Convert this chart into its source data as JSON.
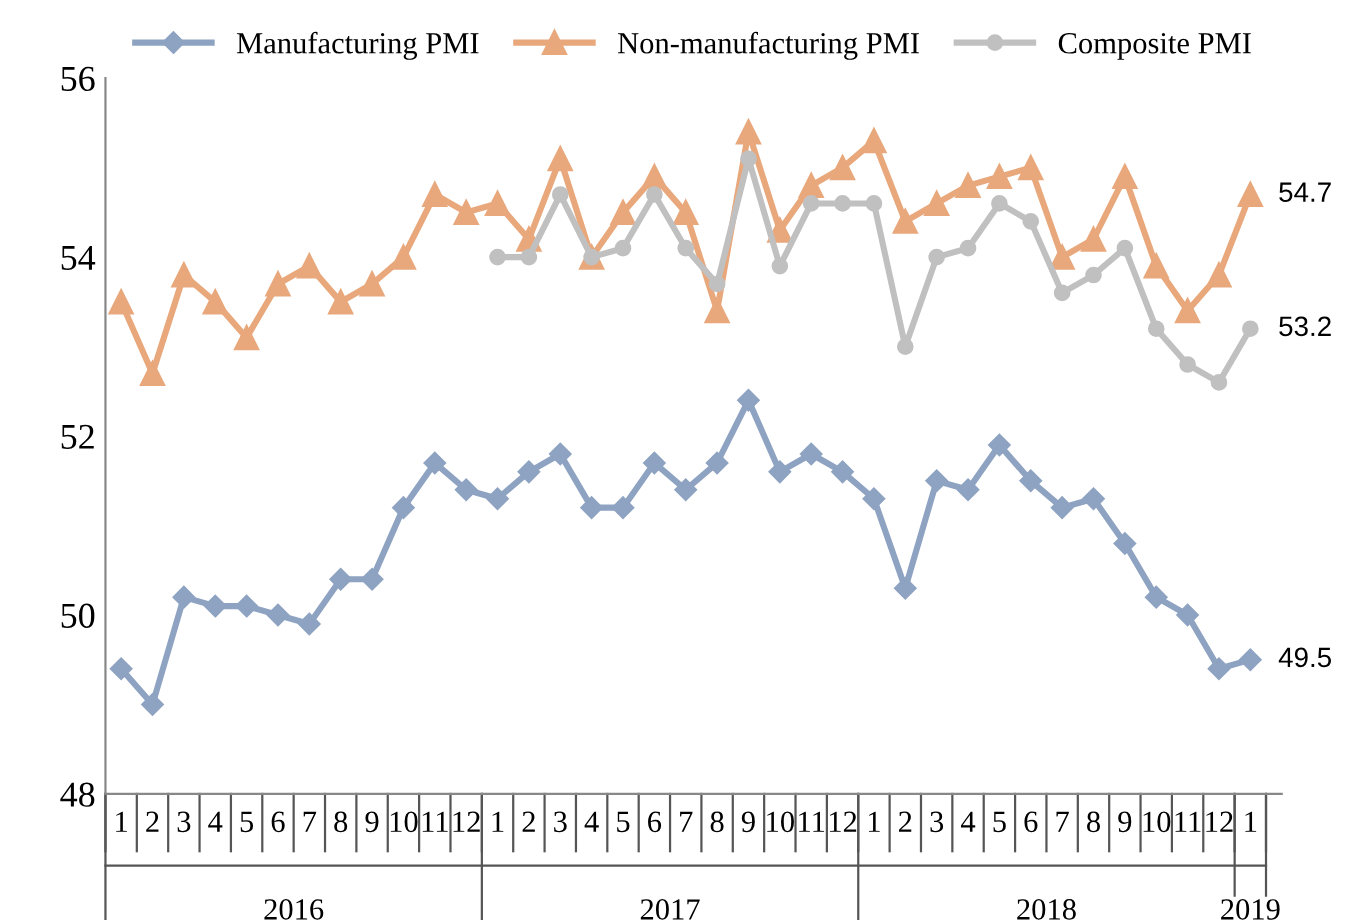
{
  "chart_data": {
    "type": "line",
    "categories": [
      "1",
      "2",
      "3",
      "4",
      "5",
      "6",
      "7",
      "8",
      "9",
      "10",
      "11",
      "12",
      "1",
      "2",
      "3",
      "4",
      "5",
      "6",
      "7",
      "8",
      "9",
      "10",
      "11",
      "12",
      "1",
      "2",
      "3",
      "4",
      "5",
      "6",
      "7",
      "8",
      "9",
      "10",
      "11",
      "12",
      "1"
    ],
    "series": [
      {
        "name": "Manufacturing PMI",
        "color": "#8ea3c2",
        "marker": "diamond",
        "values": [
          49.4,
          49.0,
          50.2,
          50.1,
          50.1,
          50.0,
          49.9,
          50.4,
          50.4,
          51.2,
          51.7,
          51.4,
          51.3,
          51.6,
          51.8,
          51.2,
          51.2,
          51.7,
          51.4,
          51.7,
          52.4,
          51.6,
          51.8,
          51.6,
          51.3,
          50.3,
          51.5,
          51.4,
          51.9,
          51.5,
          51.2,
          51.3,
          50.8,
          50.2,
          50.0,
          49.4,
          49.5
        ],
        "value_labels": [
          null,
          null,
          null,
          null,
          null,
          null,
          null,
          null,
          null,
          null,
          null,
          null,
          null,
          null,
          null,
          null,
          null,
          null,
          null,
          null,
          null,
          null,
          null,
          null,
          null,
          null,
          null,
          null,
          null,
          null,
          null,
          null,
          null,
          null,
          null,
          null,
          "49.5"
        ]
      },
      {
        "name": "Non-manufacturing PMI",
        "color": "#e8a87c",
        "marker": "triangle",
        "values": [
          53.5,
          52.7,
          53.8,
          53.5,
          53.1,
          53.7,
          53.9,
          53.5,
          53.7,
          54.0,
          54.7,
          54.5,
          54.6,
          54.2,
          55.1,
          54.0,
          54.5,
          54.9,
          54.5,
          53.4,
          55.4,
          54.3,
          54.8,
          55.0,
          55.3,
          54.4,
          54.6,
          54.8,
          54.9,
          55.0,
          54.0,
          54.2,
          54.9,
          53.9,
          53.4,
          53.8,
          54.7
        ],
        "value_labels": [
          null,
          null,
          null,
          null,
          null,
          null,
          null,
          null,
          null,
          null,
          null,
          null,
          null,
          null,
          null,
          null,
          null,
          null,
          null,
          null,
          null,
          null,
          null,
          null,
          null,
          null,
          null,
          null,
          null,
          null,
          null,
          null,
          null,
          null,
          null,
          null,
          "54.7"
        ]
      },
      {
        "name": "Composite PMI",
        "color": "#c0c0c0",
        "marker": "circle",
        "values": [
          null,
          null,
          null,
          null,
          null,
          null,
          null,
          null,
          null,
          null,
          null,
          null,
          54.0,
          54.0,
          54.7,
          54.0,
          54.1,
          54.7,
          54.1,
          53.7,
          55.1,
          53.9,
          54.6,
          54.6,
          54.6,
          53.0,
          54.0,
          54.1,
          54.6,
          54.4,
          53.6,
          53.8,
          54.1,
          53.2,
          52.8,
          52.6,
          53.2
        ],
        "value_labels": [
          null,
          null,
          null,
          null,
          null,
          null,
          null,
          null,
          null,
          null,
          null,
          null,
          null,
          null,
          null,
          null,
          null,
          null,
          null,
          null,
          null,
          null,
          null,
          null,
          null,
          null,
          null,
          null,
          null,
          null,
          null,
          null,
          null,
          null,
          null,
          null,
          "53.2"
        ]
      }
    ],
    "annotations": [
      "2016",
      "2017",
      "2018",
      "2019"
    ],
    "ylim": [
      48,
      56
    ],
    "yticks": [
      48,
      50,
      52,
      54,
      56
    ],
    "grid": false,
    "legend": "top",
    "line_style": "solid"
  }
}
